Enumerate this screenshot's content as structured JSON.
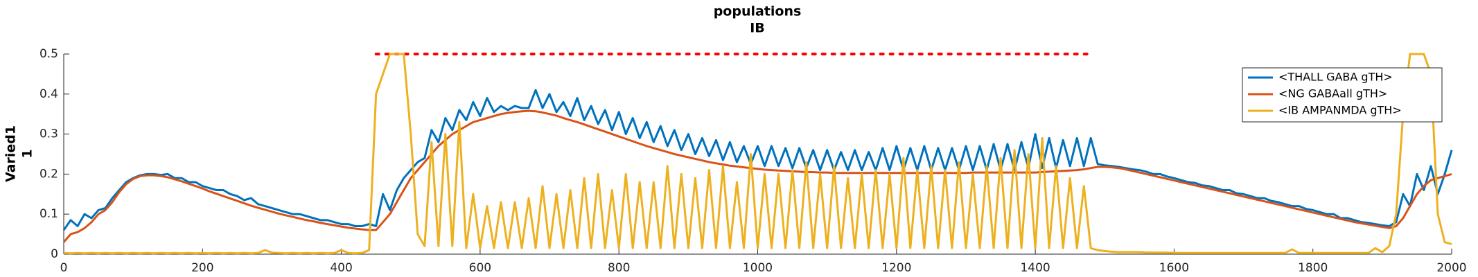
{
  "chart_data": {
    "type": "line",
    "title": "populations",
    "subtitle": "IB",
    "ylabel": [
      "Varied1",
      "1"
    ],
    "x": [
      0,
      10,
      20,
      30,
      40,
      50,
      60,
      70,
      80,
      90,
      100,
      110,
      120,
      130,
      140,
      150,
      160,
      170,
      180,
      190,
      200,
      210,
      220,
      230,
      240,
      250,
      260,
      270,
      280,
      290,
      300,
      310,
      320,
      330,
      340,
      350,
      360,
      370,
      380,
      390,
      400,
      410,
      420,
      430,
      440,
      450,
      460,
      470,
      480,
      490,
      500,
      510,
      520,
      530,
      540,
      550,
      560,
      570,
      580,
      590,
      600,
      610,
      620,
      630,
      640,
      650,
      660,
      670,
      680,
      690,
      700,
      710,
      720,
      730,
      740,
      750,
      760,
      770,
      780,
      790,
      800,
      810,
      820,
      830,
      840,
      850,
      860,
      870,
      880,
      890,
      900,
      910,
      920,
      930,
      940,
      950,
      960,
      970,
      980,
      990,
      1000,
      1010,
      1020,
      1030,
      1040,
      1050,
      1060,
      1070,
      1080,
      1090,
      1100,
      1110,
      1120,
      1130,
      1140,
      1150,
      1160,
      1170,
      1180,
      1190,
      1200,
      1210,
      1220,
      1230,
      1240,
      1250,
      1260,
      1270,
      1280,
      1290,
      1300,
      1310,
      1320,
      1330,
      1340,
      1350,
      1360,
      1370,
      1380,
      1390,
      1400,
      1410,
      1420,
      1430,
      1440,
      1450,
      1460,
      1470,
      1480,
      1490,
      1500,
      1510,
      1520,
      1530,
      1540,
      1550,
      1560,
      1570,
      1580,
      1590,
      1600,
      1610,
      1620,
      1630,
      1640,
      1650,
      1660,
      1670,
      1680,
      1690,
      1700,
      1710,
      1720,
      1730,
      1740,
      1750,
      1760,
      1770,
      1780,
      1790,
      1800,
      1810,
      1820,
      1830,
      1840,
      1850,
      1860,
      1870,
      1880,
      1890,
      1900,
      1910,
      1920,
      1930,
      1940,
      1950,
      1960,
      1970,
      1980,
      1990,
      2000
    ],
    "series": [
      {
        "name": "<THALL GABA gTH>",
        "color": "#0072bd",
        "values": [
          0.06,
          0.085,
          0.07,
          0.1,
          0.09,
          0.11,
          0.115,
          0.14,
          0.16,
          0.18,
          0.19,
          0.197,
          0.2,
          0.2,
          0.198,
          0.2,
          0.19,
          0.19,
          0.18,
          0.18,
          0.17,
          0.165,
          0.16,
          0.16,
          0.15,
          0.145,
          0.135,
          0.14,
          0.125,
          0.12,
          0.115,
          0.11,
          0.105,
          0.1,
          0.1,
          0.095,
          0.09,
          0.085,
          0.085,
          0.08,
          0.075,
          0.075,
          0.07,
          0.07,
          0.075,
          0.07,
          0.15,
          0.11,
          0.16,
          0.19,
          0.21,
          0.23,
          0.24,
          0.31,
          0.28,
          0.34,
          0.31,
          0.36,
          0.335,
          0.38,
          0.345,
          0.39,
          0.355,
          0.37,
          0.36,
          0.37,
          0.365,
          0.365,
          0.41,
          0.365,
          0.4,
          0.355,
          0.38,
          0.345,
          0.39,
          0.335,
          0.37,
          0.325,
          0.36,
          0.31,
          0.355,
          0.3,
          0.34,
          0.29,
          0.33,
          0.28,
          0.32,
          0.27,
          0.31,
          0.26,
          0.3,
          0.25,
          0.29,
          0.245,
          0.285,
          0.235,
          0.28,
          0.23,
          0.27,
          0.225,
          0.27,
          0.22,
          0.27,
          0.22,
          0.265,
          0.215,
          0.265,
          0.215,
          0.26,
          0.21,
          0.26,
          0.21,
          0.255,
          0.21,
          0.26,
          0.21,
          0.255,
          0.21,
          0.265,
          0.21,
          0.27,
          0.21,
          0.265,
          0.21,
          0.27,
          0.21,
          0.265,
          0.21,
          0.265,
          0.21,
          0.27,
          0.21,
          0.27,
          0.21,
          0.275,
          0.21,
          0.275,
          0.21,
          0.28,
          0.215,
          0.3,
          0.215,
          0.29,
          0.215,
          0.285,
          0.22,
          0.29,
          0.22,
          0.29,
          0.225,
          0.222,
          0.22,
          0.218,
          0.215,
          0.212,
          0.21,
          0.206,
          0.2,
          0.2,
          0.194,
          0.19,
          0.185,
          0.18,
          0.178,
          0.172,
          0.17,
          0.165,
          0.16,
          0.16,
          0.152,
          0.15,
          0.145,
          0.14,
          0.14,
          0.133,
          0.13,
          0.125,
          0.12,
          0.12,
          0.113,
          0.11,
          0.105,
          0.1,
          0.1,
          0.09,
          0.09,
          0.085,
          0.08,
          0.078,
          0.075,
          0.072,
          0.07,
          0.08,
          0.15,
          0.12,
          0.2,
          0.16,
          0.22,
          0.15,
          0.2,
          0.26
        ]
      },
      {
        "name": "<NG GABAall gTH>",
        "color": "#d95319",
        "values": [
          0.03,
          0.05,
          0.055,
          0.065,
          0.08,
          0.1,
          0.11,
          0.13,
          0.155,
          0.175,
          0.188,
          0.195,
          0.197,
          0.197,
          0.195,
          0.192,
          0.187,
          0.182,
          0.176,
          0.17,
          0.164,
          0.157,
          0.151,
          0.145,
          0.139,
          0.133,
          0.127,
          0.121,
          0.116,
          0.111,
          0.106,
          0.101,
          0.097,
          0.093,
          0.089,
          0.085,
          0.082,
          0.078,
          0.075,
          0.072,
          0.069,
          0.066,
          0.064,
          0.062,
          0.06,
          0.06,
          0.08,
          0.1,
          0.13,
          0.16,
          0.19,
          0.21,
          0.23,
          0.25,
          0.27,
          0.285,
          0.3,
          0.31,
          0.32,
          0.33,
          0.335,
          0.34,
          0.345,
          0.35,
          0.353,
          0.355,
          0.357,
          0.358,
          0.357,
          0.354,
          0.35,
          0.346,
          0.34,
          0.335,
          0.33,
          0.324,
          0.318,
          0.312,
          0.306,
          0.3,
          0.294,
          0.288,
          0.282,
          0.276,
          0.27,
          0.265,
          0.26,
          0.255,
          0.25,
          0.246,
          0.242,
          0.238,
          0.234,
          0.23,
          0.227,
          0.224,
          0.221,
          0.219,
          0.217,
          0.215,
          0.213,
          0.211,
          0.21,
          0.209,
          0.208,
          0.207,
          0.206,
          0.205,
          0.205,
          0.204,
          0.204,
          0.203,
          0.203,
          0.203,
          0.203,
          0.203,
          0.203,
          0.203,
          0.203,
          0.203,
          0.203,
          0.203,
          0.203,
          0.203,
          0.203,
          0.203,
          0.203,
          0.203,
          0.203,
          0.203,
          0.203,
          0.204,
          0.204,
          0.204,
          0.204,
          0.204,
          0.204,
          0.204,
          0.204,
          0.204,
          0.204,
          0.205,
          0.206,
          0.207,
          0.208,
          0.209,
          0.21,
          0.212,
          0.215,
          0.218,
          0.218,
          0.217,
          0.215,
          0.212,
          0.208,
          0.204,
          0.2,
          0.196,
          0.192,
          0.188,
          0.184,
          0.18,
          0.176,
          0.172,
          0.168,
          0.164,
          0.16,
          0.156,
          0.152,
          0.148,
          0.144,
          0.14,
          0.136,
          0.132,
          0.128,
          0.124,
          0.12,
          0.116,
          0.112,
          0.108,
          0.104,
          0.1,
          0.096,
          0.092,
          0.088,
          0.084,
          0.08,
          0.077,
          0.074,
          0.071,
          0.068,
          0.065,
          0.07,
          0.09,
          0.12,
          0.15,
          0.17,
          0.185,
          0.19,
          0.195,
          0.2
        ]
      },
      {
        "name": "<IB AMPANMDA gTH>",
        "color": "#edb120",
        "values": [
          0.003,
          0.002,
          0.003,
          0.002,
          0.003,
          0.002,
          0.003,
          0.002,
          0.003,
          0.002,
          0.003,
          0.002,
          0.003,
          0.002,
          0.003,
          0.002,
          0.003,
          0.002,
          0.003,
          0.002,
          0.003,
          0.002,
          0.003,
          0.002,
          0.003,
          0.002,
          0.003,
          0.002,
          0.003,
          0.01,
          0.004,
          0.003,
          0.002,
          0.003,
          0.002,
          0.003,
          0.002,
          0.003,
          0.002,
          0.003,
          0.01,
          0.003,
          0.002,
          0.003,
          0.01,
          0.4,
          0.45,
          0.5,
          0.5,
          0.5,
          0.3,
          0.05,
          0.02,
          0.28,
          0.02,
          0.3,
          0.02,
          0.33,
          0.015,
          0.15,
          0.015,
          0.12,
          0.015,
          0.13,
          0.015,
          0.13,
          0.015,
          0.14,
          0.015,
          0.17,
          0.015,
          0.15,
          0.015,
          0.16,
          0.015,
          0.19,
          0.015,
          0.2,
          0.015,
          0.16,
          0.015,
          0.2,
          0.015,
          0.18,
          0.015,
          0.18,
          0.015,
          0.22,
          0.015,
          0.2,
          0.015,
          0.19,
          0.015,
          0.21,
          0.015,
          0.22,
          0.015,
          0.18,
          0.015,
          0.25,
          0.015,
          0.2,
          0.015,
          0.2,
          0.015,
          0.21,
          0.015,
          0.23,
          0.015,
          0.2,
          0.015,
          0.22,
          0.015,
          0.19,
          0.015,
          0.2,
          0.015,
          0.21,
          0.015,
          0.2,
          0.015,
          0.24,
          0.015,
          0.21,
          0.015,
          0.22,
          0.015,
          0.21,
          0.015,
          0.23,
          0.015,
          0.2,
          0.015,
          0.22,
          0.015,
          0.24,
          0.015,
          0.26,
          0.015,
          0.25,
          0.015,
          0.29,
          0.015,
          0.22,
          0.015,
          0.19,
          0.015,
          0.17,
          0.015,
          0.01,
          0.008,
          0.006,
          0.005,
          0.005,
          0.005,
          0.005,
          0.004,
          0.004,
          0.004,
          0.004,
          0.003,
          0.003,
          0.003,
          0.003,
          0.003,
          0.003,
          0.003,
          0.003,
          0.003,
          0.003,
          0.003,
          0.003,
          0.003,
          0.003,
          0.003,
          0.003,
          0.003,
          0.012,
          0.003,
          0.003,
          0.003,
          0.003,
          0.003,
          0.003,
          0.003,
          0.003,
          0.003,
          0.003,
          0.003,
          0.015,
          0.005,
          0.02,
          0.1,
          0.35,
          0.5,
          0.5,
          0.5,
          0.45,
          0.1,
          0.03,
          0.025
        ]
      }
    ],
    "reference_line": {
      "x": [
        450,
        1480
      ],
      "y": 0.5,
      "color": "#ff0000"
    },
    "xlim": [
      0,
      2000
    ],
    "xticks": [
      0,
      200,
      400,
      600,
      800,
      1000,
      1200,
      1400,
      1600,
      1800,
      2000
    ],
    "ylim": [
      0,
      0.5
    ],
    "yticks": [
      0,
      0.1,
      0.2,
      0.3,
      0.4,
      0.5
    ],
    "legend": "upper right"
  }
}
